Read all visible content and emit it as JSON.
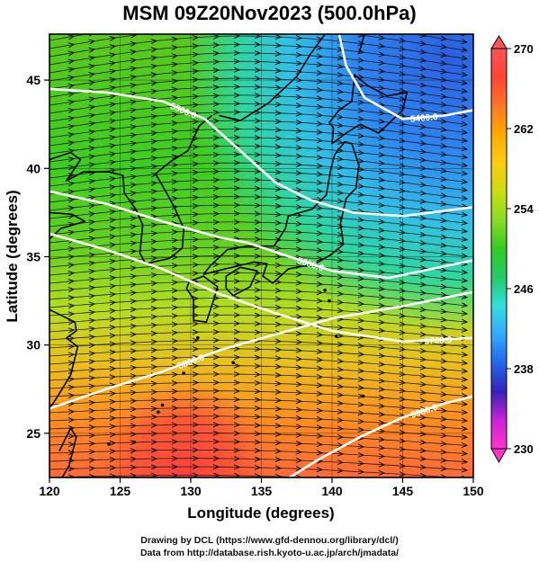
{
  "title": "MSM 09Z20Nov2023 (500.0hPa)",
  "axes": {
    "xlabel": "Longitude (degrees)",
    "ylabel": "Latitude  (degrees)",
    "x_range": [
      120,
      150
    ],
    "y_range": [
      22.5,
      47.6
    ],
    "x_ticks": [
      "120",
      "125",
      "130",
      "135",
      "140",
      "145",
      "150"
    ],
    "y_ticks": [
      "25",
      "30",
      "35",
      "40",
      "45"
    ]
  },
  "colorbar": {
    "min": 230,
    "max": 270,
    "tick_labels": [
      "270",
      "262",
      "254",
      "246",
      "238",
      "230"
    ],
    "colors_low_to_high": [
      "#ff33cc",
      "#cc22d8",
      "#3322bb",
      "#2266ee",
      "#33aaff",
      "#33dddd",
      "#22cc66",
      "#33cc22",
      "#88dd22",
      "#ccdd11",
      "#ffcc11",
      "#ffaa00",
      "#ff7722",
      "#ff4433",
      "#ff5555"
    ]
  },
  "chart_data": {
    "type": "heatmap",
    "field": "temperature",
    "overlays": [
      "wind streamlines",
      "geopotential height contours"
    ],
    "contour_labels": [
      "5400.0",
      "5500.0",
      "5600.0",
      "5700.0",
      "5800.0",
      "5900.0"
    ]
  },
  "credits": {
    "line1": "Drawing by DCL (https://www.gfd-dennou.org/library/dcl/)",
    "line2": "Data from http://database.rish.kyoto-u.ac.jp/arch/jmadata/"
  }
}
